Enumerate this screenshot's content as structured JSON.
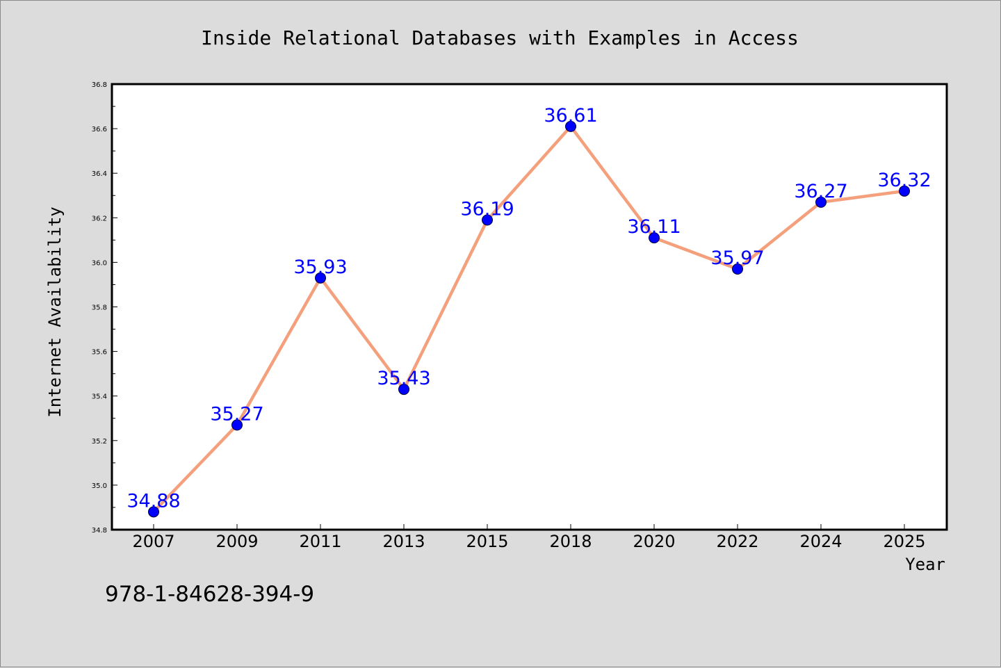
{
  "colors": {
    "background": "#dcdcdc",
    "plot_background": "#ffffff",
    "line": "#f4a07c",
    "marker": "#0000ff",
    "label": "#0000ff",
    "text": "#000000"
  },
  "footer_text": "978-1-84628-394-9",
  "chart_data": {
    "type": "line",
    "title": "Inside Relational Databases with Examples in Access",
    "xlabel": "Year",
    "ylabel": "Internet Availability",
    "categories": [
      "2007",
      "2009",
      "2011",
      "2013",
      "2015",
      "2018",
      "2020",
      "2022",
      "2024",
      "2025"
    ],
    "series": [
      {
        "values": [
          34.88,
          35.27,
          35.93,
          35.43,
          36.19,
          36.61,
          36.11,
          35.97,
          36.27,
          36.32
        ]
      }
    ],
    "data_labels": [
      "34.88",
      "35.27",
      "35.93",
      "35.43",
      "36.19",
      "36.61",
      "36.11",
      "35.97",
      "36.27",
      "36.32"
    ],
    "ylim": [
      34.8,
      36.8
    ],
    "yticks": [
      34.8,
      35.0,
      35.2,
      35.4,
      35.6,
      35.8,
      36.0,
      36.2,
      36.4,
      36.6,
      36.8
    ],
    "ytick_labels": [
      "34.8",
      "35.0",
      "35.2",
      "35.4",
      "35.6",
      "35.8",
      "36.0",
      "36.2",
      "36.4",
      "36.6",
      "36.8"
    ],
    "grid": false,
    "legend": "none"
  }
}
